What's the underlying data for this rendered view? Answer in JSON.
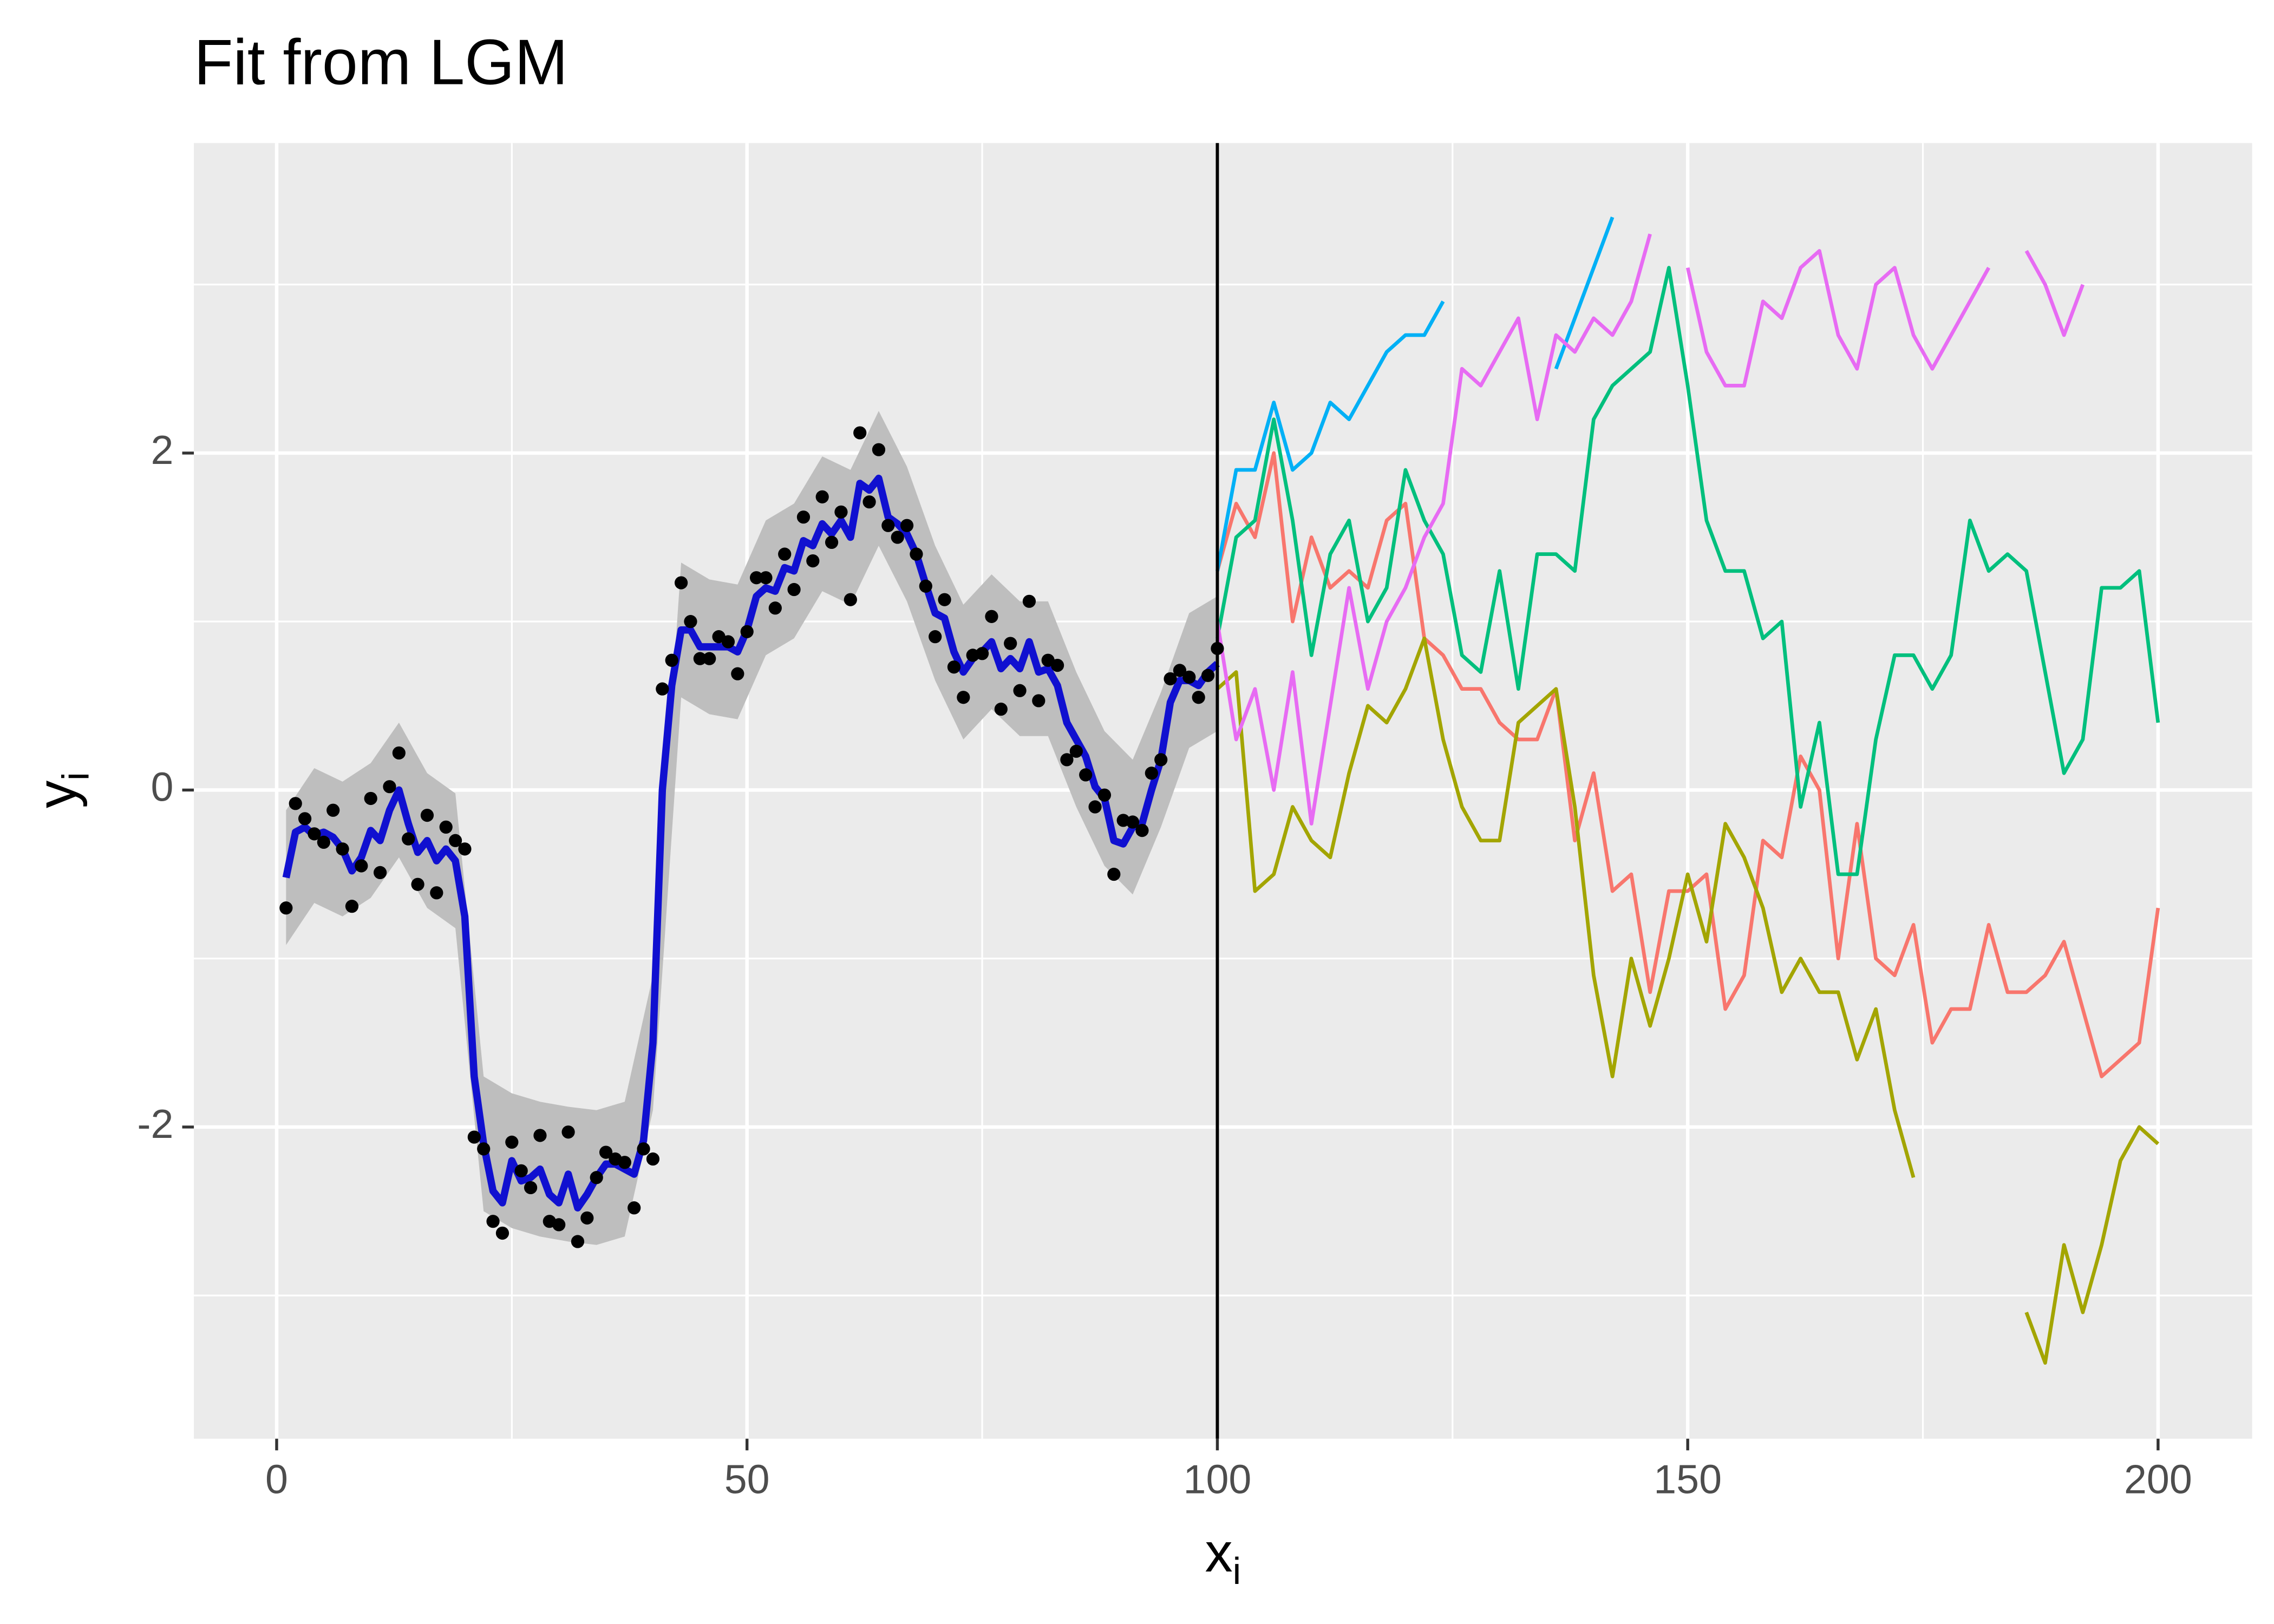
{
  "chart_data": {
    "type": "line",
    "title": "Fit from LGM",
    "xlabel": "x",
    "xlabel_subscript": "i",
    "ylabel": "y",
    "ylabel_subscript": "i",
    "xlim": [
      -8.8,
      210
    ],
    "ylim": [
      -3.85,
      3.84
    ],
    "xticks": [
      0,
      50,
      100,
      150,
      200
    ],
    "yticks": [
      -2,
      0,
      2
    ],
    "xminor": [
      25,
      75,
      125,
      175
    ],
    "yminor": [
      -3,
      -1,
      1,
      3
    ],
    "grid": true,
    "vline": 100,
    "series": [
      {
        "kind": "ribbon",
        "color": "#BEBEBE",
        "x": [
          1,
          4,
          7,
          10,
          13,
          16,
          19,
          22,
          25,
          28,
          31,
          34,
          37,
          40,
          43,
          46,
          49,
          52,
          55,
          58,
          61,
          64,
          67,
          70,
          73,
          76,
          79,
          82,
          85,
          88,
          91,
          94,
          97,
          100
        ],
        "lower": [
          -0.92,
          -0.67,
          -0.75,
          -0.64,
          -0.4,
          -0.7,
          -0.82,
          -2.5,
          -2.6,
          -2.65,
          -2.68,
          -2.7,
          -2.65,
          -1.9,
          0.55,
          0.45,
          0.42,
          0.8,
          0.9,
          1.18,
          1.1,
          1.45,
          1.12,
          0.65,
          0.3,
          0.48,
          0.32,
          0.32,
          -0.1,
          -0.45,
          -0.62,
          -0.22,
          0.25,
          0.35
        ],
        "upper": [
          -0.12,
          0.13,
          0.05,
          0.16,
          0.4,
          0.1,
          -0.02,
          -1.7,
          -1.8,
          -1.85,
          -1.88,
          -1.9,
          -1.85,
          -1.1,
          1.35,
          1.25,
          1.22,
          1.6,
          1.7,
          1.98,
          1.9,
          2.25,
          1.92,
          1.45,
          1.1,
          1.28,
          1.12,
          1.12,
          0.7,
          0.35,
          0.18,
          0.58,
          1.05,
          1.15
        ]
      },
      {
        "kind": "points",
        "color": "#000000",
        "x": [
          1,
          2,
          3,
          4,
          5,
          6,
          7,
          8,
          9,
          10,
          11,
          12,
          13,
          14,
          15,
          16,
          17,
          18,
          19,
          20,
          21,
          22,
          23,
          24,
          25,
          26,
          27,
          28,
          29,
          30,
          31,
          32,
          33,
          34,
          35,
          36,
          37,
          38,
          39,
          40,
          41,
          42,
          43,
          44,
          45,
          46,
          47,
          48,
          49,
          50,
          51,
          52,
          53,
          54,
          55,
          56,
          57,
          58,
          59,
          60,
          61,
          62,
          63,
          64,
          65,
          66,
          67,
          68,
          69,
          70,
          71,
          72,
          73,
          74,
          75,
          76,
          77,
          78,
          79,
          80,
          81,
          82,
          83,
          84,
          85,
          86,
          87,
          88,
          89,
          90,
          91,
          92,
          93,
          94,
          95,
          96,
          97,
          98,
          99,
          100
        ],
        "values": [
          -0.7,
          -0.08,
          -0.17,
          -0.26,
          -0.31,
          -0.12,
          -0.35,
          -0.69,
          -0.45,
          -0.05,
          -0.49,
          0.02,
          0.22,
          -0.29,
          -0.56,
          -0.15,
          -0.61,
          -0.22,
          -0.3,
          -0.35,
          -2.06,
          -2.13,
          -2.56,
          -2.63,
          -2.09,
          -2.26,
          -2.36,
          -2.05,
          -2.56,
          -2.58,
          -2.03,
          -2.68,
          -2.54,
          -2.3,
          -2.15,
          -2.19,
          -2.21,
          -2.48,
          -2.13,
          -2.19,
          0.6,
          0.77,
          1.23,
          1.0,
          0.78,
          0.78,
          0.91,
          0.88,
          0.69,
          0.94,
          1.26,
          1.26,
          1.08,
          1.4,
          1.19,
          1.62,
          1.36,
          1.74,
          1.47,
          1.65,
          1.13,
          2.12,
          1.71,
          2.02,
          1.57,
          1.5,
          1.57,
          1.4,
          1.21,
          0.91,
          1.13,
          0.73,
          0.55,
          0.8,
          0.81,
          1.03,
          0.48,
          0.87,
          0.59,
          1.12,
          0.53,
          0.77,
          0.74,
          0.18,
          0.23,
          0.09,
          -0.1,
          -0.03,
          -0.5,
          -0.18,
          -0.19,
          -0.24,
          0.1,
          0.18,
          0.66,
          0.71,
          0.67,
          0.55,
          0.68,
          0.84
        ]
      },
      {
        "kind": "line",
        "color": "#1010D0",
        "width": 5,
        "x": [
          1,
          2,
          3,
          4,
          5,
          6,
          7,
          8,
          9,
          10,
          11,
          12,
          13,
          14,
          15,
          16,
          17,
          18,
          19,
          20,
          21,
          22,
          23,
          24,
          25,
          26,
          27,
          28,
          29,
          30,
          31,
          32,
          33,
          34,
          35,
          36,
          37,
          38,
          39,
          40,
          41,
          42,
          43,
          44,
          45,
          46,
          47,
          48,
          49,
          50,
          51,
          52,
          53,
          54,
          55,
          56,
          57,
          58,
          59,
          60,
          61,
          62,
          63,
          64,
          65,
          66,
          67,
          68,
          69,
          70,
          71,
          72,
          73,
          74,
          75,
          76,
          77,
          78,
          79,
          80,
          81,
          82,
          83,
          84,
          85,
          86,
          87,
          88,
          89,
          90,
          91,
          92,
          93,
          94,
          95,
          96,
          97,
          98,
          99,
          100
        ],
        "values": [
          -0.52,
          -0.25,
          -0.22,
          -0.27,
          -0.25,
          -0.28,
          -0.35,
          -0.48,
          -0.4,
          -0.24,
          -0.3,
          -0.12,
          0.0,
          -0.2,
          -0.37,
          -0.3,
          -0.42,
          -0.35,
          -0.42,
          -0.75,
          -1.7,
          -2.1,
          -2.38,
          -2.45,
          -2.2,
          -2.32,
          -2.3,
          -2.25,
          -2.4,
          -2.45,
          -2.28,
          -2.48,
          -2.4,
          -2.3,
          -2.22,
          -2.22,
          -2.25,
          -2.28,
          -2.08,
          -1.5,
          0.0,
          0.62,
          0.95,
          0.95,
          0.85,
          0.85,
          0.85,
          0.85,
          0.82,
          0.95,
          1.15,
          1.2,
          1.18,
          1.32,
          1.3,
          1.48,
          1.45,
          1.58,
          1.52,
          1.6,
          1.5,
          1.82,
          1.78,
          1.85,
          1.62,
          1.58,
          1.52,
          1.4,
          1.22,
          1.05,
          1.02,
          0.82,
          0.7,
          0.78,
          0.82,
          0.88,
          0.72,
          0.78,
          0.72,
          0.88,
          0.7,
          0.72,
          0.62,
          0.4,
          0.3,
          0.2,
          0.02,
          -0.05,
          -0.3,
          -0.32,
          -0.22,
          -0.2,
          0.0,
          0.18,
          0.52,
          0.65,
          0.65,
          0.62,
          0.7,
          0.75
        ]
      },
      {
        "kind": "line",
        "color": "#F8766D",
        "width": 2.5,
        "x": [
          100,
          102,
          104,
          106,
          108,
          110,
          112,
          114,
          116,
          118,
          120,
          122,
          124,
          126,
          128,
          130,
          132,
          134,
          136,
          138,
          140,
          142,
          144,
          146,
          148,
          150,
          152,
          154,
          156,
          158,
          160,
          162,
          164,
          166,
          168,
          170,
          172,
          174,
          176,
          178,
          180,
          182,
          184,
          186,
          188,
          190,
          192,
          194,
          196,
          198,
          200
        ],
        "values": [
          1.3,
          1.7,
          1.5,
          2.0,
          1.0,
          1.5,
          1.2,
          1.3,
          1.2,
          1.6,
          1.7,
          0.9,
          0.8,
          0.6,
          0.6,
          0.4,
          0.3,
          0.3,
          0.6,
          -0.3,
          0.1,
          -0.6,
          -0.5,
          -1.2,
          -0.6,
          -0.6,
          -0.5,
          -1.3,
          -1.1,
          -0.3,
          -0.4,
          0.2,
          0.0,
          -1.0,
          -0.2,
          -1.0,
          -1.1,
          -0.8,
          -1.5,
          -1.3,
          -1.3,
          -0.8,
          -1.2,
          -1.2,
          -1.1,
          -0.9,
          -1.3,
          -1.7,
          -1.6,
          -1.5,
          -0.7
        ]
      },
      {
        "kind": "line",
        "color": "#A3A500",
        "width": 2.5,
        "x": [
          100,
          102,
          104,
          106,
          108,
          110,
          112,
          114,
          116,
          118,
          120,
          122,
          124,
          126,
          128,
          130,
          132,
          134,
          136,
          138,
          140,
          142,
          144,
          146,
          148,
          150,
          152,
          154,
          156,
          158,
          160,
          162,
          164,
          166,
          168,
          170,
          172,
          174,
          176,
          178,
          180,
          182,
          184,
          186,
          188,
          190,
          192,
          194,
          196,
          198,
          200
        ],
        "values": [
          0.6,
          0.7,
          -0.6,
          -0.5,
          -0.1,
          -0.3,
          -0.4,
          0.1,
          0.5,
          0.4,
          0.6,
          0.9,
          0.3,
          -0.1,
          -0.3,
          -0.3,
          0.4,
          0.5,
          0.6,
          -0.1,
          -1.1,
          -1.7,
          -1.0,
          -1.4,
          -1.0,
          -0.5,
          -0.9,
          -0.2,
          -0.4,
          -0.7,
          -1.2,
          -1.0,
          -1.2,
          -1.2,
          -1.6,
          -1.3,
          -1.9,
          -2.3,
          null,
          null,
          null,
          null,
          null,
          -3.1,
          -3.4,
          -2.7,
          -3.1,
          -2.7,
          -2.2,
          -2.0,
          -2.1
        ]
      },
      {
        "kind": "line",
        "color": "#00BF7D",
        "width": 2.5,
        "x": [
          100,
          102,
          104,
          106,
          108,
          110,
          112,
          114,
          116,
          118,
          120,
          122,
          124,
          126,
          128,
          130,
          132,
          134,
          136,
          138,
          140,
          142,
          144,
          146,
          148,
          150,
          152,
          154,
          156,
          158,
          160,
          162,
          164,
          166,
          168,
          170,
          172,
          174,
          176,
          178,
          180,
          182,
          184,
          186,
          188,
          190,
          192,
          194,
          196,
          198,
          200
        ],
        "values": [
          0.9,
          1.5,
          1.6,
          2.2,
          1.6,
          0.8,
          1.4,
          1.6,
          1.0,
          1.2,
          1.9,
          1.6,
          1.4,
          0.8,
          0.7,
          1.3,
          0.6,
          1.4,
          1.4,
          1.3,
          2.2,
          2.4,
          2.5,
          2.6,
          3.1,
          2.4,
          1.6,
          1.3,
          1.3,
          0.9,
          1.0,
          -0.1,
          0.4,
          -0.5,
          -0.5,
          0.3,
          0.8,
          0.8,
          0.6,
          0.8,
          1.6,
          1.3,
          1.4,
          1.3,
          0.7,
          0.1,
          0.3,
          1.2,
          1.2,
          1.3,
          0.4
        ]
      },
      {
        "kind": "line",
        "color": "#00B0F6",
        "width": 2.5,
        "x": [
          100,
          102,
          104,
          106,
          108,
          110,
          112,
          114,
          116,
          118,
          120,
          122,
          124,
          126,
          128,
          130,
          132,
          134,
          136,
          138,
          140,
          142,
          144,
          146,
          148,
          150,
          152,
          154,
          156,
          158,
          160,
          162,
          164,
          166,
          168,
          170,
          172,
          174,
          176,
          178,
          180,
          182,
          184,
          186,
          188,
          190,
          192,
          194,
          196,
          198,
          200
        ],
        "values": [
          1.3,
          1.9,
          1.9,
          2.3,
          1.9,
          2.0,
          2.3,
          2.2,
          2.4,
          2.6,
          2.7,
          2.7,
          2.9,
          null,
          null,
          null,
          null,
          null,
          2.5,
          2.8,
          3.1,
          3.4,
          null,
          null,
          null,
          null,
          null,
          null,
          null,
          null,
          null,
          null,
          null,
          null,
          null,
          null,
          null,
          null,
          null,
          null,
          null,
          null,
          null,
          null,
          null,
          null,
          null,
          null,
          null,
          null,
          null
        ]
      },
      {
        "kind": "line",
        "color": "#E76BF3",
        "width": 2.5,
        "x": [
          100,
          102,
          104,
          106,
          108,
          110,
          112,
          114,
          116,
          118,
          120,
          122,
          124,
          126,
          128,
          130,
          132,
          134,
          136,
          138,
          140,
          142,
          144,
          146,
          148,
          150,
          152,
          154,
          156,
          158,
          160,
          162,
          164,
          166,
          168,
          170,
          172,
          174,
          176,
          178,
          180,
          182,
          184,
          186,
          188,
          190,
          192,
          194,
          196,
          198,
          200
        ],
        "values": [
          1.0,
          0.3,
          0.6,
          0.0,
          0.7,
          -0.2,
          0.5,
          1.2,
          0.6,
          1.0,
          1.2,
          1.5,
          1.7,
          2.5,
          2.4,
          2.6,
          2.8,
          2.2,
          2.7,
          2.6,
          2.8,
          2.7,
          2.9,
          3.3,
          null,
          3.1,
          2.6,
          2.4,
          2.4,
          2.9,
          2.8,
          3.1,
          3.2,
          2.7,
          2.5,
          3.0,
          3.1,
          2.7,
          2.5,
          2.7,
          2.9,
          3.1,
          null,
          3.2,
          3.0,
          2.7,
          3.0,
          null,
          null,
          null,
          null
        ]
      }
    ]
  }
}
